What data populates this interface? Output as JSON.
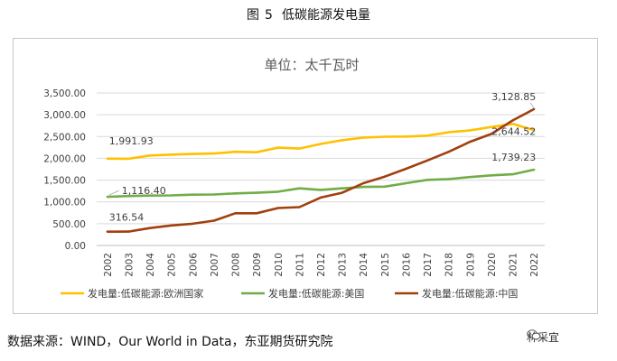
{
  "figure": {
    "label": "图",
    "number": "5",
    "title": "低碳能源发电量"
  },
  "source": "数据来源：WIND，Our World in Data，东亚期货研究院",
  "watermark": {
    "text": "林采宜",
    "icon": "wechat-icon"
  },
  "chart_data": {
    "type": "line",
    "title": "单位：太千瓦时",
    "xlabel": "",
    "ylabel": "",
    "ylim": [
      0,
      3500
    ],
    "yticks": [
      0,
      500,
      1000,
      1500,
      2000,
      2500,
      3000,
      3500
    ],
    "ytick_labels": [
      "0.00",
      "500.00",
      "1,000.00",
      "1,500.00",
      "2,000.00",
      "2,500.00",
      "3,000.00",
      "3,500.00"
    ],
    "categories": [
      "2002",
      "2003",
      "2004",
      "2005",
      "2006",
      "2007",
      "2008",
      "2009",
      "2010",
      "2011",
      "2012",
      "2013",
      "2014",
      "2015",
      "2016",
      "2017",
      "2018",
      "2019",
      "2020",
      "2021",
      "2022"
    ],
    "grid": true,
    "legend_position": "bottom",
    "series": [
      {
        "name": "发电量:低碳能源:欧洲国家",
        "color": "#FFC000",
        "values": [
          1991.93,
          1990,
          2065,
          2085,
          2100,
          2110,
          2150,
          2140,
          2245,
          2225,
          2330,
          2415,
          2475,
          2495,
          2500,
          2520,
          2600,
          2640,
          2720,
          2790,
          2644.52
        ]
      },
      {
        "name": "发电量:低碳能源:美国",
        "color": "#70AD47",
        "values": [
          1116.4,
          1135,
          1145,
          1150,
          1165,
          1170,
          1195,
          1210,
          1235,
          1310,
          1275,
          1310,
          1345,
          1350,
          1430,
          1505,
          1525,
          1570,
          1610,
          1635,
          1739.23
        ]
      },
      {
        "name": "发电量:低碳能源:中国",
        "color": "#A0400F",
        "values": [
          316.54,
          318,
          400,
          460,
          500,
          570,
          740,
          740,
          860,
          880,
          1100,
          1210,
          1430,
          1580,
          1760,
          1950,
          2150,
          2380,
          2560,
          2870,
          3128.85
        ]
      }
    ],
    "data_labels": [
      {
        "series": 0,
        "index": 0,
        "text": "1,991.93"
      },
      {
        "series": 1,
        "index": 0,
        "text": "1,116.40"
      },
      {
        "series": 2,
        "index": 0,
        "text": "316.54"
      },
      {
        "series": 0,
        "index": 20,
        "text": "2,644.52"
      },
      {
        "series": 1,
        "index": 20,
        "text": "1,739.23"
      },
      {
        "series": 2,
        "index": 20,
        "text": "3,128.85"
      }
    ]
  }
}
